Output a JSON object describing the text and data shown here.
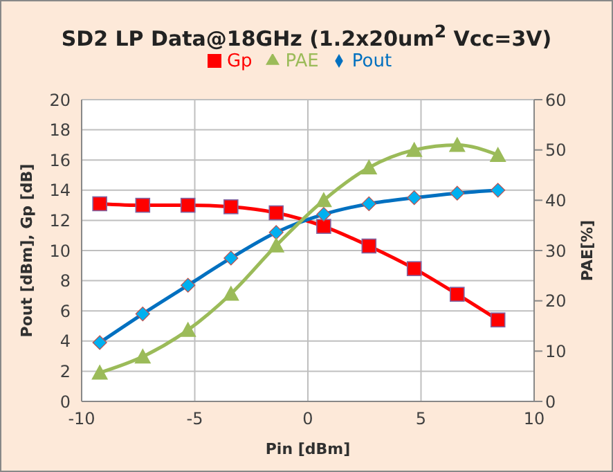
{
  "chart_data": {
    "type": "line",
    "title": "SD2 LP Data@18GHz (1.2x20um$^{2}$ Vcc=3V)",
    "xlabel": "Pin [dBm]",
    "ylabel": "Pout [dBm], Gp [dB]",
    "y2label": "PAE[%]",
    "x": [
      -9.2,
      -7.3,
      -5.3,
      -3.4,
      -1.4,
      0.7,
      2.7,
      4.7,
      6.6,
      8.4
    ],
    "series": [
      {
        "name": "Gp",
        "color": "#ff0000",
        "marker": "square",
        "values": [
          13.1,
          13.0,
          13.0,
          12.9,
          12.5,
          11.6,
          10.3,
          8.8,
          7.1,
          5.4
        ]
      },
      {
        "name": "Pout",
        "color": "#0070c0",
        "marker": "diamond",
        "values": [
          3.9,
          5.8,
          7.7,
          9.5,
          11.2,
          12.4,
          13.1,
          13.5,
          13.8,
          14.0
        ]
      },
      {
        "name": "PAE",
        "color": "#9bbb59",
        "marker": "triangle",
        "axis": "y2",
        "values": [
          5.7,
          8.9,
          14.2,
          21.4,
          31,
          40,
          46.5,
          50,
          51,
          49
        ]
      }
    ],
    "xlim": [
      -10,
      10
    ],
    "xticks": [
      -10,
      -5,
      0,
      5,
      10
    ],
    "ylim": [
      0,
      20
    ],
    "yticks": [
      0,
      2,
      4,
      6,
      8,
      10,
      12,
      14,
      16,
      18,
      20
    ],
    "y2lim": [
      0,
      60
    ],
    "y2ticks": [
      0,
      10,
      20,
      30,
      40,
      50,
      60
    ],
    "grid": true,
    "legend": "top"
  }
}
